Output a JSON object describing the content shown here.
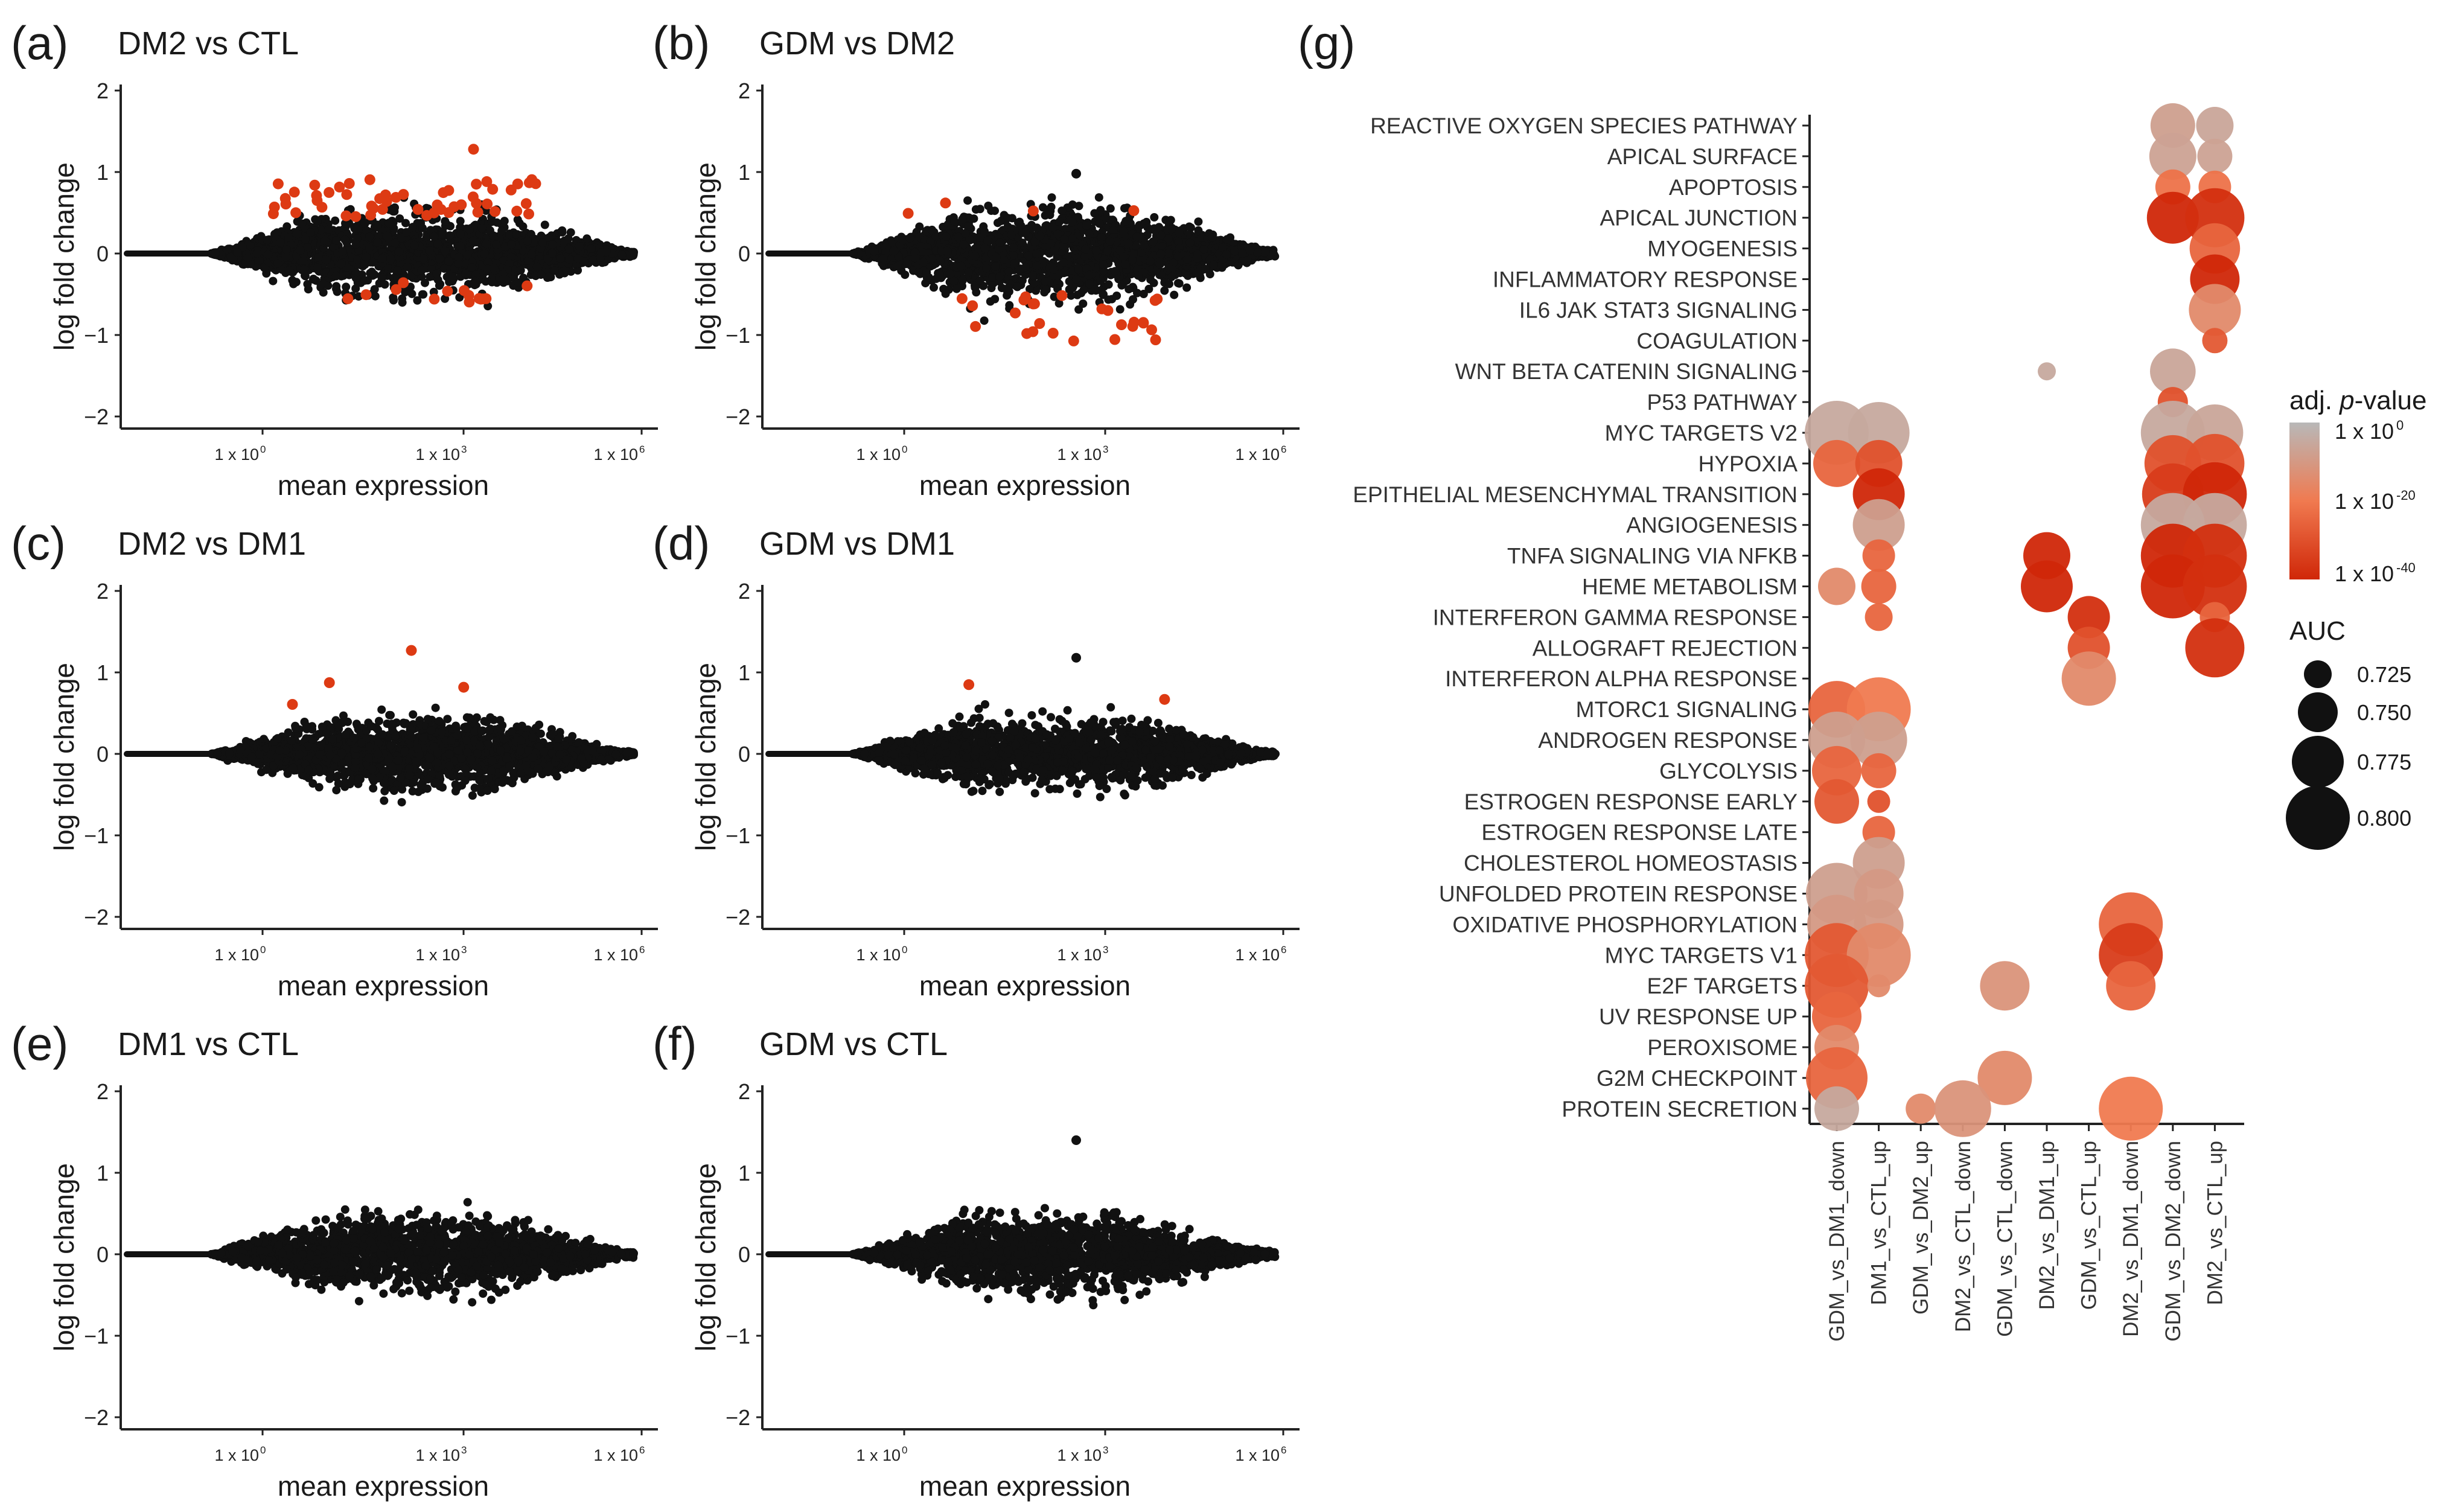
{
  "colors": {
    "significant": "#dd3a13",
    "nonsignificant": "#111111",
    "gradient_low": "#d02708",
    "gradient_mid": "#f07a50",
    "gradient_high": "#b8b8b8"
  },
  "chart_data": [
    {
      "panel": "(a)",
      "title": "DM2 vs CTL",
      "type": "scatter",
      "xlabel": "mean expression",
      "ylabel": "log fold change",
      "ylim": [
        -2.1,
        2.1
      ],
      "yticks": [
        "2",
        "1",
        "0",
        "−1",
        "−2"
      ],
      "xticks": [
        "1 x 10",
        "1 x 10",
        "1 x 10"
      ],
      "xticks_exp": [
        "0",
        "3",
        "6"
      ],
      "spread": 0.72,
      "n_red_up": 55,
      "n_red_down": 14,
      "red_up_range": [
        0.45,
        1.28
      ],
      "red_down_range": [
        -0.6,
        -0.35
      ],
      "outliers": []
    },
    {
      "panel": "(b)",
      "title": "GDM vs DM2",
      "type": "scatter",
      "xlabel": "mean expression",
      "ylabel": "log fold change",
      "ylim": [
        -2.1,
        2.1
      ],
      "yticks": [
        "2",
        "1",
        "0",
        "−1",
        "−2"
      ],
      "xticks": [
        "1 x 10",
        "1 x 10",
        "1 x 10"
      ],
      "xticks_exp": [
        "0",
        "3",
        "6"
      ],
      "spread": 0.78,
      "n_red_up": 4,
      "n_red_down": 26,
      "red_up_range": [
        0.45,
        0.62
      ],
      "red_down_range": [
        -1.08,
        -0.5
      ],
      "outliers": [
        [
          0.98
        ]
      ]
    },
    {
      "panel": "(c)",
      "title": "DM2 vs DM1",
      "type": "scatter",
      "xlabel": "mean expression",
      "ylabel": "log fold change",
      "ylim": [
        -2.1,
        2.1
      ],
      "yticks": [
        "2",
        "1",
        "0",
        "−1",
        "−2"
      ],
      "xticks": [
        "1 x 10",
        "1 x 10",
        "1 x 10"
      ],
      "xticks_exp": [
        "0",
        "3",
        "6"
      ],
      "spread": 0.62,
      "n_red_up": 4,
      "n_red_down": 0,
      "red_up_range": [
        0.6,
        1.27
      ],
      "red_down_range": [
        0,
        0
      ],
      "outliers": []
    },
    {
      "panel": "(d)",
      "title": "GDM vs DM1",
      "type": "scatter",
      "xlabel": "mean expression",
      "ylabel": "log fold change",
      "ylim": [
        -2.1,
        2.1
      ],
      "yticks": [
        "2",
        "1",
        "0",
        "−1",
        "−2"
      ],
      "xticks": [
        "1 x 10",
        "1 x 10",
        "1 x 10"
      ],
      "xticks_exp": [
        "0",
        "3",
        "6"
      ],
      "spread": 0.6,
      "n_red_up": 2,
      "n_red_down": 0,
      "red_up_range": [
        0.55,
        0.85
      ],
      "red_down_range": [
        0,
        0
      ],
      "outliers": [
        [
          1.18
        ]
      ]
    },
    {
      "panel": "(e)",
      "title": "DM1 vs CTL",
      "type": "scatter",
      "xlabel": "mean expression",
      "ylabel": "log fold change",
      "ylim": [
        -2.1,
        2.1
      ],
      "yticks": [
        "2",
        "1",
        "0",
        "−1",
        "−2"
      ],
      "xticks": [
        "1 x 10",
        "1 x 10",
        "1 x 10"
      ],
      "xticks_exp": [
        "0",
        "3",
        "6"
      ],
      "spread": 0.65,
      "n_red_up": 0,
      "n_red_down": 0,
      "red_up_range": [
        0,
        0
      ],
      "red_down_range": [
        0,
        0
      ],
      "outliers": []
    },
    {
      "panel": "(f)",
      "title": "GDM vs CTL",
      "type": "scatter",
      "xlabel": "mean expression",
      "ylabel": "log fold change",
      "ylim": [
        -2.1,
        2.1
      ],
      "yticks": [
        "2",
        "1",
        "0",
        "−1",
        "−2"
      ],
      "xticks": [
        "1 x 10",
        "1 x 10",
        "1 x 10"
      ],
      "xticks_exp": [
        "0",
        "3",
        "6"
      ],
      "spread": 0.65,
      "n_red_up": 0,
      "n_red_down": 0,
      "red_up_range": [
        0,
        0
      ],
      "red_down_range": [
        0,
        0
      ],
      "outliers": [
        [
          1.4
        ]
      ]
    },
    {
      "panel": "(g)",
      "type": "dotplot",
      "columns": [
        "GDM_vs_DM1_down",
        "DM1_vs_CTL_up",
        "GDM_vs_DM2_up",
        "DM2_vs_CTL_down",
        "GDM_vs_CTL_down",
        "DM2_vs_DM1_up",
        "GDM_vs_CTL_up",
        "DM2_vs_DM1_down",
        "GDM_vs_DM2_down",
        "DM2_vs_CTL_up"
      ],
      "pathways": [
        "REACTIVE OXYGEN SPECIES PATHWAY",
        "APICAL SURFACE",
        "APOPTOSIS",
        "APICAL JUNCTION",
        "MYOGENESIS",
        "INFLAMMATORY RESPONSE",
        "IL6 JAK STAT3 SIGNALING",
        "COAGULATION",
        "WNT BETA CATENIN SIGNALING",
        "P53 PATHWAY",
        "MYC TARGETS V2",
        "HYPOXIA",
        "EPITHELIAL MESENCHYMAL TRANSITION",
        "ANGIOGENESIS",
        "TNFA SIGNALING VIA NFKB",
        "HEME METABOLISM",
        "INTERFERON GAMMA RESPONSE",
        "ALLOGRAFT REJECTION",
        "INTERFERON ALPHA RESPONSE",
        "MTORC1 SIGNALING",
        "ANDROGEN RESPONSE",
        "GLYCOLYSIS",
        "ESTROGEN RESPONSE EARLY",
        "ESTROGEN RESPONSE LATE",
        "CHOLESTEROL HOMEOSTASIS",
        "UNFOLDED PROTEIN RESPONSE",
        "OXIDATIVE PHOSPHORYLATION",
        "MYC TARGETS V1",
        "E2F TARGETS",
        "UV RESPONSE UP",
        "PEROXISOME",
        "G2M CHECKPOINT",
        "PROTEIN SECRETION"
      ],
      "dots": [
        {
          "pathway": 0,
          "col": 8,
          "auc": 0.76,
          "logp": -8
        },
        {
          "pathway": 0,
          "col": 9,
          "auc": 0.745,
          "logp": -6
        },
        {
          "pathway": 1,
          "col": 8,
          "auc": 0.765,
          "logp": -7
        },
        {
          "pathway": 1,
          "col": 9,
          "auc": 0.74,
          "logp": -7
        },
        {
          "pathway": 2,
          "col": 8,
          "auc": 0.74,
          "logp": -22
        },
        {
          "pathway": 2,
          "col": 9,
          "auc": 0.735,
          "logp": -22
        },
        {
          "pathway": 3,
          "col": 8,
          "auc": 0.775,
          "logp": -40
        },
        {
          "pathway": 3,
          "col": 9,
          "auc": 0.79,
          "logp": -38
        },
        {
          "pathway": 4,
          "col": 9,
          "auc": 0.772,
          "logp": -25
        },
        {
          "pathway": 5,
          "col": 9,
          "auc": 0.77,
          "logp": -40
        },
        {
          "pathway": 6,
          "col": 9,
          "auc": 0.775,
          "logp": -15
        },
        {
          "pathway": 7,
          "col": 9,
          "auc": 0.72,
          "logp": -28
        },
        {
          "pathway": 8,
          "col": 5,
          "auc": 0.705,
          "logp": -5
        },
        {
          "pathway": 8,
          "col": 8,
          "auc": 0.762,
          "logp": -6
        },
        {
          "pathway": 9,
          "col": 8,
          "auc": 0.73,
          "logp": -30
        },
        {
          "pathway": 10,
          "col": 0,
          "auc": 0.8,
          "logp": -5
        },
        {
          "pathway": 10,
          "col": 1,
          "auc": 0.795,
          "logp": -5
        },
        {
          "pathway": 10,
          "col": 8,
          "auc": 0.8,
          "logp": -5
        },
        {
          "pathway": 10,
          "col": 9,
          "auc": 0.785,
          "logp": -6
        },
        {
          "pathway": 11,
          "col": 0,
          "auc": 0.765,
          "logp": -25
        },
        {
          "pathway": 11,
          "col": 1,
          "auc": 0.765,
          "logp": -30
        },
        {
          "pathway": 11,
          "col": 8,
          "auc": 0.785,
          "logp": -30
        },
        {
          "pathway": 11,
          "col": 9,
          "auc": 0.79,
          "logp": -30
        },
        {
          "pathway": 12,
          "col": 1,
          "auc": 0.775,
          "logp": -40
        },
        {
          "pathway": 12,
          "col": 8,
          "auc": 0.795,
          "logp": -35
        },
        {
          "pathway": 12,
          "col": 9,
          "auc": 0.8,
          "logp": -40
        },
        {
          "pathway": 13,
          "col": 1,
          "auc": 0.775,
          "logp": -8
        },
        {
          "pathway": 13,
          "col": 8,
          "auc": 0.8,
          "logp": -5
        },
        {
          "pathway": 13,
          "col": 9,
          "auc": 0.8,
          "logp": -5
        },
        {
          "pathway": 14,
          "col": 1,
          "auc": 0.735,
          "logp": -25
        },
        {
          "pathway": 14,
          "col": 5,
          "auc": 0.765,
          "logp": -40
        },
        {
          "pathway": 14,
          "col": 8,
          "auc": 0.8,
          "logp": -40
        },
        {
          "pathway": 14,
          "col": 9,
          "auc": 0.8,
          "logp": -38
        },
        {
          "pathway": 15,
          "col": 0,
          "auc": 0.745,
          "logp": -15
        },
        {
          "pathway": 15,
          "col": 1,
          "auc": 0.74,
          "logp": -25
        },
        {
          "pathway": 15,
          "col": 5,
          "auc": 0.775,
          "logp": -40
        },
        {
          "pathway": 15,
          "col": 8,
          "auc": 0.8,
          "logp": -40
        },
        {
          "pathway": 15,
          "col": 9,
          "auc": 0.8,
          "logp": -38
        },
        {
          "pathway": 16,
          "col": 1,
          "auc": 0.725,
          "logp": -25
        },
        {
          "pathway": 16,
          "col": 6,
          "auc": 0.755,
          "logp": -38
        },
        {
          "pathway": 16,
          "col": 9,
          "auc": 0.73,
          "logp": -25
        },
        {
          "pathway": 17,
          "col": 6,
          "auc": 0.755,
          "logp": -30
        },
        {
          "pathway": 17,
          "col": 9,
          "auc": 0.79,
          "logp": -38
        },
        {
          "pathway": 18,
          "col": 6,
          "auc": 0.78,
          "logp": -15
        },
        {
          "pathway": 19,
          "col": 0,
          "auc": 0.785,
          "logp": -25
        },
        {
          "pathway": 19,
          "col": 1,
          "auc": 0.8,
          "logp": -20
        },
        {
          "pathway": 20,
          "col": 0,
          "auc": 0.785,
          "logp": -8
        },
        {
          "pathway": 20,
          "col": 1,
          "auc": 0.785,
          "logp": -8
        },
        {
          "pathway": 21,
          "col": 0,
          "auc": 0.77,
          "logp": -25
        },
        {
          "pathway": 21,
          "col": 1,
          "auc": 0.74,
          "logp": -25
        },
        {
          "pathway": 22,
          "col": 0,
          "auc": 0.76,
          "logp": -28
        },
        {
          "pathway": 22,
          "col": 1,
          "auc": 0.715,
          "logp": -30
        },
        {
          "pathway": 23,
          "col": 1,
          "auc": 0.735,
          "logp": -25
        },
        {
          "pathway": 24,
          "col": 1,
          "auc": 0.775,
          "logp": -8
        },
        {
          "pathway": 25,
          "col": 0,
          "auc": 0.795,
          "logp": -8
        },
        {
          "pathway": 25,
          "col": 1,
          "auc": 0.77,
          "logp": -10
        },
        {
          "pathway": 26,
          "col": 0,
          "auc": 0.79,
          "logp": -10
        },
        {
          "pathway": 26,
          "col": 1,
          "auc": 0.77,
          "logp": -10
        },
        {
          "pathway": 26,
          "col": 7,
          "auc": 0.8,
          "logp": -25
        },
        {
          "pathway": 27,
          "col": 0,
          "auc": 0.8,
          "logp": -28
        },
        {
          "pathway": 27,
          "col": 1,
          "auc": 0.8,
          "logp": -15
        },
        {
          "pathway": 27,
          "col": 7,
          "auc": 0.8,
          "logp": -35
        },
        {
          "pathway": 28,
          "col": 0,
          "auc": 0.8,
          "logp": -28
        },
        {
          "pathway": 28,
          "col": 1,
          "auc": 0.715,
          "logp": -15
        },
        {
          "pathway": 28,
          "col": 4,
          "auc": 0.77,
          "logp": -12
        },
        {
          "pathway": 28,
          "col": 7,
          "auc": 0.77,
          "logp": -25
        },
        {
          "pathway": 29,
          "col": 0,
          "auc": 0.77,
          "logp": -25
        },
        {
          "pathway": 30,
          "col": 0,
          "auc": 0.76,
          "logp": -15
        },
        {
          "pathway": 31,
          "col": 0,
          "auc": 0.795,
          "logp": -25
        },
        {
          "pathway": 31,
          "col": 4,
          "auc": 0.78,
          "logp": -15
        },
        {
          "pathway": 32,
          "col": 0,
          "auc": 0.76,
          "logp": -5
        },
        {
          "pathway": 32,
          "col": 2,
          "auc": 0.73,
          "logp": -15
        },
        {
          "pathway": 32,
          "col": 3,
          "auc": 0.785,
          "logp": -12
        },
        {
          "pathway": 32,
          "col": 7,
          "auc": 0.8,
          "logp": -20
        }
      ],
      "legend": {
        "color_title_prefix": "adj. ",
        "color_title_italic": "p",
        "color_title_suffix": "-value",
        "color_labels": [
          "1 x 10",
          "1 x 10",
          "1 x 10"
        ],
        "color_exps": [
          "0",
          "-20",
          "-40"
        ],
        "size_title": "AUC",
        "size_values": [
          "0.725",
          "0.750",
          "0.775",
          "0.800"
        ],
        "size_auc": [
          0.725,
          0.75,
          0.775,
          0.8
        ]
      }
    }
  ]
}
